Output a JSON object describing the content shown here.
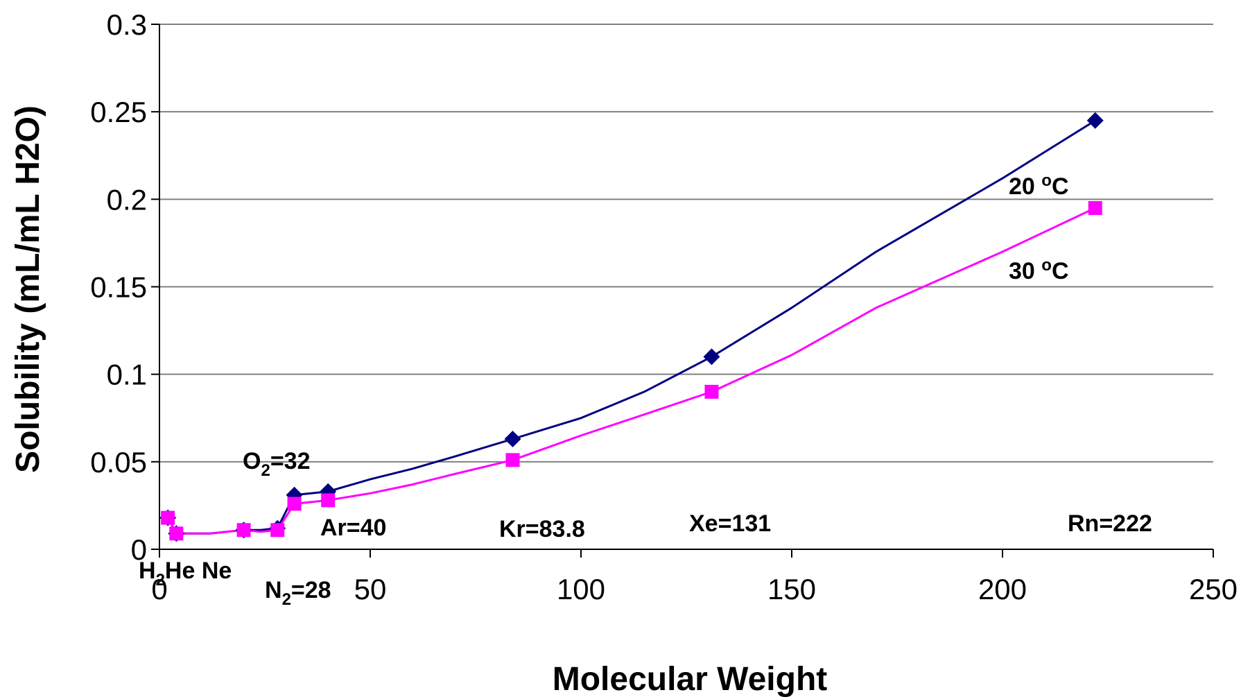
{
  "chart_data": {
    "type": "line",
    "xlabel": "Molecular Weight",
    "ylabel": "Solubility (mL/mL H2O)",
    "xlim": [
      0,
      250
    ],
    "ylim": [
      0,
      0.3
    ],
    "xticks": [
      "0",
      "50",
      "100",
      "150",
      "200",
      "250"
    ],
    "yticks": [
      "0",
      "0.05",
      "0.1",
      "0.15",
      "0.2",
      "0.25",
      "0.3"
    ],
    "grid": "horizontal",
    "colors": {
      "20C": "#000080",
      "30C": "#ff00ff"
    },
    "series": [
      {
        "name": "20 oC",
        "label_main": "20 ",
        "label_sup": "o",
        "label_unit": "C",
        "marker": "diamond",
        "points": [
          [
            2,
            0.018
          ],
          [
            4,
            0.009
          ],
          [
            20,
            0.011
          ],
          [
            28,
            0.012
          ],
          [
            32,
            0.031
          ],
          [
            40,
            0.033
          ],
          [
            83.8,
            0.063
          ],
          [
            131,
            0.11
          ],
          [
            222,
            0.245
          ]
        ],
        "line": [
          [
            2,
            0.018
          ],
          [
            4,
            0.009
          ],
          [
            12,
            0.009
          ],
          [
            20,
            0.011
          ],
          [
            24,
            0.011
          ],
          [
            28,
            0.012
          ],
          [
            32,
            0.031
          ],
          [
            36,
            0.032
          ],
          [
            40,
            0.033
          ],
          [
            50,
            0.04
          ],
          [
            60,
            0.046
          ],
          [
            70,
            0.053
          ],
          [
            83.8,
            0.063
          ],
          [
            100,
            0.075
          ],
          [
            115,
            0.09
          ],
          [
            131,
            0.11
          ],
          [
            150,
            0.138
          ],
          [
            170,
            0.17
          ],
          [
            200,
            0.212
          ],
          [
            222,
            0.245
          ]
        ]
      },
      {
        "name": "30 oC",
        "label_main": "30 ",
        "label_sup": "o",
        "label_unit": "C",
        "marker": "square",
        "points": [
          [
            2,
            0.018
          ],
          [
            4,
            0.009
          ],
          [
            20,
            0.011
          ],
          [
            28,
            0.011
          ],
          [
            32,
            0.026
          ],
          [
            40,
            0.028
          ],
          [
            83.8,
            0.051
          ],
          [
            131,
            0.09
          ],
          [
            222,
            0.195
          ]
        ],
        "line": [
          [
            2,
            0.018
          ],
          [
            4,
            0.009
          ],
          [
            12,
            0.009
          ],
          [
            20,
            0.011
          ],
          [
            24,
            0.01
          ],
          [
            28,
            0.011
          ],
          [
            32,
            0.026
          ],
          [
            36,
            0.027
          ],
          [
            40,
            0.028
          ],
          [
            50,
            0.032
          ],
          [
            60,
            0.037
          ],
          [
            70,
            0.043
          ],
          [
            83.8,
            0.051
          ],
          [
            100,
            0.065
          ],
          [
            115,
            0.077
          ],
          [
            131,
            0.09
          ],
          [
            150,
            0.111
          ],
          [
            170,
            0.138
          ],
          [
            200,
            0.17
          ],
          [
            222,
            0.195
          ]
        ]
      }
    ],
    "annotations": [
      {
        "key": "h2",
        "main": "H",
        "sub": "2",
        "rest": "He Ne"
      },
      {
        "key": "n2",
        "main": "N",
        "sub": "2",
        "rest": "=28"
      },
      {
        "key": "o2",
        "main": "O",
        "sub": "2",
        "rest": "=32"
      },
      {
        "key": "ar",
        "text": "Ar=40"
      },
      {
        "key": "kr",
        "text": "Kr=83.8"
      },
      {
        "key": "xe",
        "text": "Xe=131"
      },
      {
        "key": "rn",
        "text": "Rn=222"
      }
    ]
  }
}
